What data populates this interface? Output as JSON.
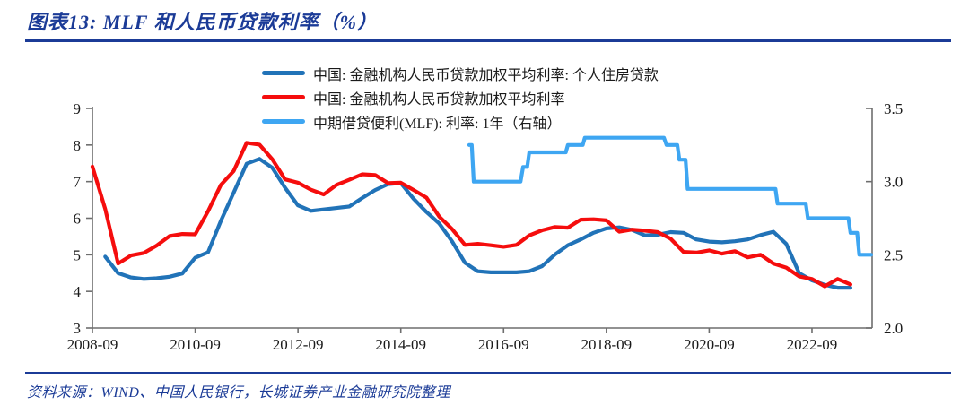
{
  "header": {
    "title": "图表13: MLF 和人民币贷款利率（%）"
  },
  "footer": {
    "source": "资料来源：WIND、中国人民银行，长城证券产业金融研究院整理"
  },
  "colors": {
    "accent_navy": "#1b3b97",
    "housing_line": "#2173b8",
    "overall_line": "#f50d0d",
    "mlf_line": "#3ea6f2",
    "axis_line": "#6e6e6e",
    "axis_text": "#1a1a1a"
  },
  "legend": [
    {
      "label": "中国: 金融机构人民币贷款加权平均利率: 个人住房贷款",
      "color": "#2173b8"
    },
    {
      "label": "中国: 金融机构人民币贷款加权平均利率",
      "color": "#f50d0d"
    },
    {
      "label": "中期借贷便利(MLF): 利率: 1年（右轴）",
      "color": "#3ea6f2"
    }
  ],
  "chart_data": {
    "type": "line",
    "title": "MLF 和人民币贷款利率（%）",
    "grid": false,
    "legend_position": "top",
    "left_axis": {
      "min": 3,
      "max": 9,
      "tick_values": [
        3,
        4,
        5,
        6,
        7,
        8,
        9
      ],
      "tick_labels": [
        "3",
        "4",
        "5",
        "6",
        "7",
        "8",
        "9"
      ]
    },
    "right_axis": {
      "min": 2.0,
      "max": 3.5,
      "tick_values": [
        2.0,
        2.5,
        3.0,
        3.5
      ],
      "tick_labels": [
        "2.0",
        "2.5",
        "3.0",
        "3.5"
      ]
    },
    "x_axis": {
      "start": 2008.75,
      "end": 2023.92,
      "ticks": [
        {
          "pos": 2008.75,
          "label": "2008-09"
        },
        {
          "pos": 2010.75,
          "label": "2010-09"
        },
        {
          "pos": 2012.75,
          "label": "2012-09"
        },
        {
          "pos": 2014.75,
          "label": "2014-09"
        },
        {
          "pos": 2016.75,
          "label": "2016-09"
        },
        {
          "pos": 2018.75,
          "label": "2018-09"
        },
        {
          "pos": 2020.75,
          "label": "2020-09"
        },
        {
          "pos": 2022.75,
          "label": "2022-09"
        }
      ]
    },
    "series": [
      {
        "key": "housing-loan-rate",
        "name": "中国: 金融机构人民币贷款加权平均利率: 个人住房贷款",
        "axis": "left",
        "color": "#2173b8",
        "x_start": 2009.0,
        "x_step": 0.25,
        "values": [
          4.95,
          4.5,
          4.38,
          4.34,
          4.36,
          4.4,
          4.49,
          4.92,
          5.07,
          5.93,
          6.7,
          7.49,
          7.62,
          7.38,
          6.83,
          6.35,
          6.2,
          6.24,
          6.28,
          6.32,
          6.55,
          6.77,
          6.93,
          6.96,
          6.53,
          6.17,
          5.85,
          5.36,
          4.78,
          4.55,
          4.52,
          4.52,
          4.52,
          4.55,
          4.69,
          5.01,
          5.26,
          5.42,
          5.6,
          5.72,
          5.75,
          5.68,
          5.53,
          5.55,
          5.62,
          5.6,
          5.42,
          5.36,
          5.34,
          5.37,
          5.42,
          5.54,
          5.63,
          5.3,
          4.5,
          4.3,
          4.18,
          4.1,
          4.1
        ]
      },
      {
        "key": "overall-loan-rate",
        "name": "中国: 金融机构人民币贷款加权平均利率",
        "axis": "left",
        "color": "#f50d0d",
        "x_start": 2008.75,
        "x_step": 0.25,
        "values": [
          7.41,
          6.25,
          4.76,
          4.98,
          5.05,
          5.25,
          5.51,
          5.57,
          5.56,
          6.19,
          6.91,
          7.29,
          8.06,
          8.01,
          7.61,
          7.06,
          6.97,
          6.78,
          6.65,
          6.91,
          7.05,
          7.2,
          7.18,
          6.96,
          6.97,
          6.77,
          6.56,
          6.04,
          5.7,
          5.27,
          5.3,
          5.26,
          5.22,
          5.27,
          5.53,
          5.67,
          5.76,
          5.74,
          5.96,
          5.97,
          5.94,
          5.63,
          5.69,
          5.66,
          5.62,
          5.44,
          5.08,
          5.06,
          5.12,
          5.03,
          5.1,
          4.93,
          5.0,
          4.76,
          4.65,
          4.41,
          4.34,
          4.14,
          4.34,
          4.19
        ]
      },
      {
        "key": "mlf-1y-rate",
        "name": "中期借贷便利(MLF): 利率: 1年（右轴）",
        "axis": "right",
        "color": "#3ea6f2",
        "points": [
          [
            2016.08,
            3.25
          ],
          [
            2016.13,
            3.25
          ],
          [
            2016.17,
            3.0
          ],
          [
            2017.08,
            3.0
          ],
          [
            2017.13,
            3.1
          ],
          [
            2017.21,
            3.1
          ],
          [
            2017.25,
            3.2
          ],
          [
            2017.96,
            3.2
          ],
          [
            2018.0,
            3.25
          ],
          [
            2018.29,
            3.25
          ],
          [
            2018.33,
            3.3
          ],
          [
            2019.87,
            3.3
          ],
          [
            2019.92,
            3.25
          ],
          [
            2020.13,
            3.25
          ],
          [
            2020.17,
            3.15
          ],
          [
            2020.29,
            3.15
          ],
          [
            2020.33,
            2.95
          ],
          [
            2022.04,
            2.95
          ],
          [
            2022.08,
            2.85
          ],
          [
            2022.63,
            2.85
          ],
          [
            2022.67,
            2.75
          ],
          [
            2023.46,
            2.75
          ],
          [
            2023.5,
            2.65
          ],
          [
            2023.63,
            2.65
          ],
          [
            2023.67,
            2.5
          ],
          [
            2023.9,
            2.5
          ]
        ]
      }
    ]
  }
}
